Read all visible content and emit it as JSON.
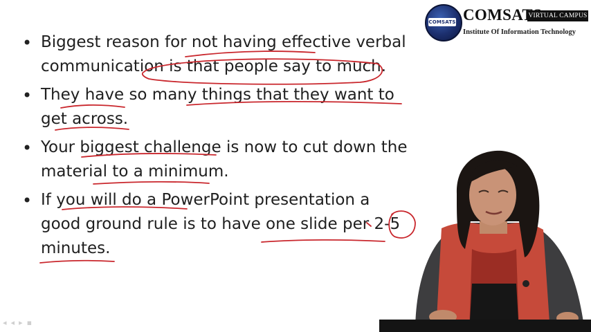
{
  "logo": {
    "title": "COMSATS",
    "badge": "VIRTUAL CAMPUS",
    "subtitle": "Institute Of Information Technology",
    "emblem_text": "COMSATS"
  },
  "bullets": [
    {
      "lines": [
        "Biggest reason for not having effective verbal",
        "communication is that people say to much."
      ]
    },
    {
      "lines": [
        "They have so many things that they want to",
        "get across."
      ]
    },
    {
      "lines": [
        "Your biggest challenge is now to cut down the",
        "material to a minimum."
      ]
    },
    {
      "lines": [
        "If you will do a PowerPoint presentation a",
        "good ground rule is to have one slide per 2-5",
        "minutes."
      ]
    }
  ],
  "bullet_symbol": "•",
  "annotation_color": "#c9262c",
  "player_controls": [
    "◂",
    "◂",
    "▸",
    "▪"
  ]
}
